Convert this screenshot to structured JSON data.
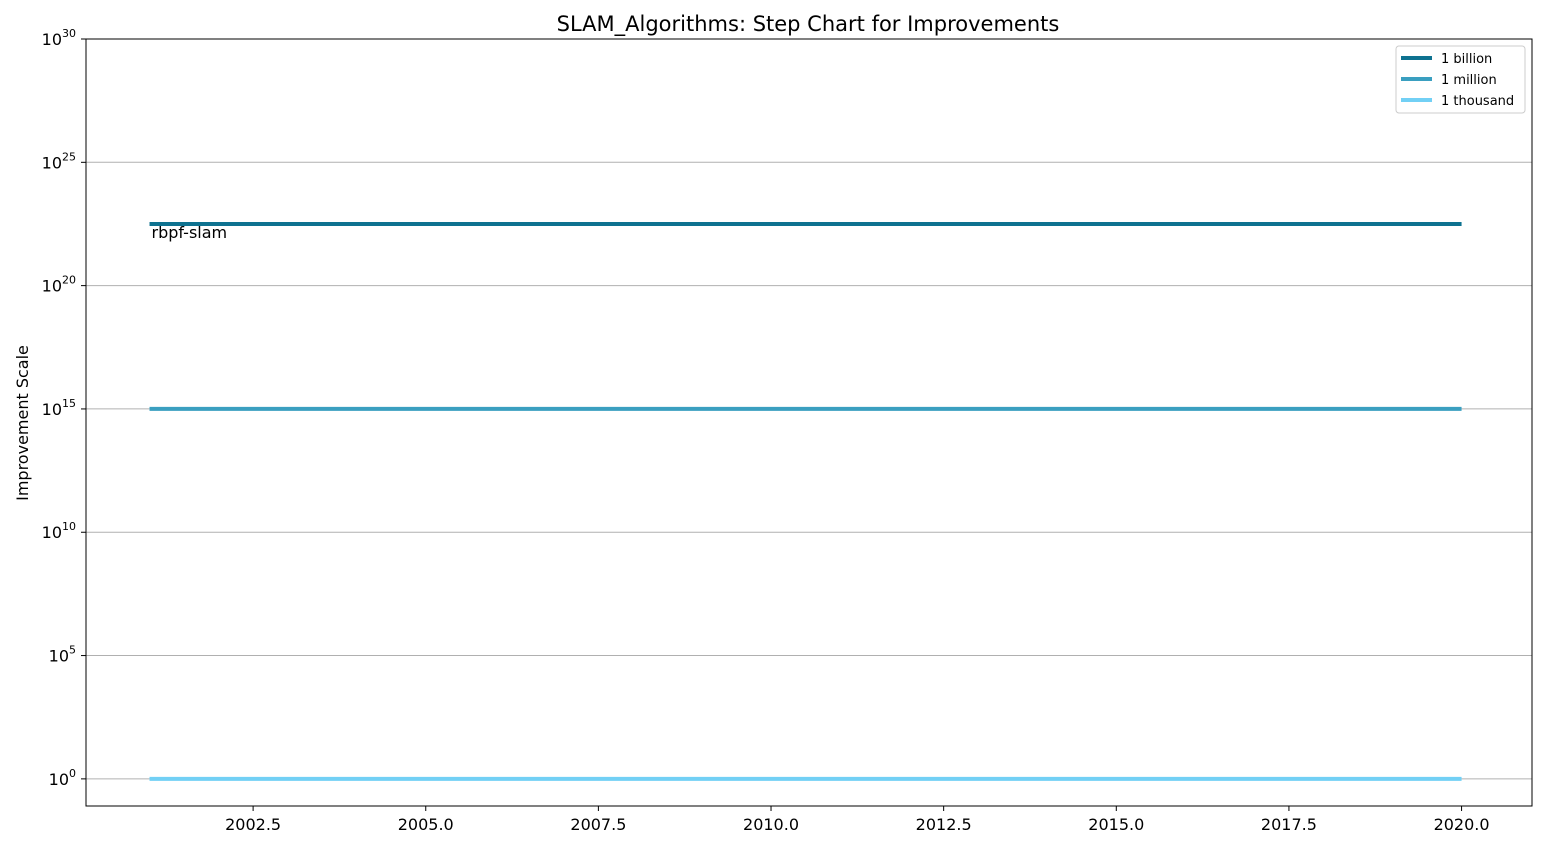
{
  "chart_data": {
    "type": "line",
    "title": "SLAM_Algorithms: Step Chart for Improvements",
    "xlabel": "",
    "ylabel": "Improvement Scale",
    "yscale": "log",
    "xlim": [
      2000.08,
      2021.02
    ],
    "ylim_exponent": [
      -1.1,
      30
    ],
    "x_ticks": [
      2002.5,
      2005.0,
      2007.5,
      2010.0,
      2012.5,
      2015.0,
      2017.5,
      2020.0
    ],
    "x_tick_labels": [
      "2002.5",
      "2005.0",
      "2007.5",
      "2010.0",
      "2012.5",
      "2015.0",
      "2017.5",
      "2020.0"
    ],
    "y_tick_exponents": [
      0,
      5,
      10,
      15,
      20,
      25,
      30
    ],
    "y_tick_base": "10",
    "grid": "horizontal",
    "legend_placement": "top-right",
    "series": [
      {
        "name": "1 billion",
        "color": "#0e7290",
        "x": [
          2001.0,
          2020.0
        ],
        "y": [
          "1e22.5",
          "1e22.5"
        ],
        "y_exponent": [
          22.5,
          22.5
        ]
      },
      {
        "name": "1 million",
        "color": "#3a9fc0",
        "x": [
          2001.0,
          2020.0
        ],
        "y": [
          "1e15",
          "1e15"
        ],
        "y_exponent": [
          15,
          15
        ]
      },
      {
        "name": "1 thousand",
        "color": "#72d0f5",
        "x": [
          2001.0,
          2020.0
        ],
        "y": [
          "1",
          "1"
        ],
        "y_exponent": [
          0,
          0
        ]
      }
    ],
    "annotations": [
      {
        "text": "rbpf-slam",
        "x": 2001.0,
        "y_exponent": 22.5
      }
    ]
  }
}
